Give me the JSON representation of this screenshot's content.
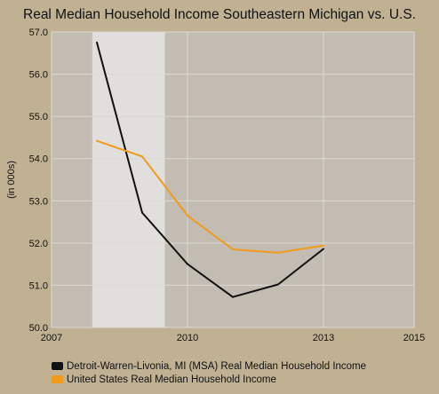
{
  "chart_data": {
    "type": "line",
    "title": "Real Median Household Income Southeastern Michigan vs. U.S.",
    "xlabel": "",
    "ylabel": "(in 000s)",
    "xlim": [
      2007,
      2015
    ],
    "ylim": [
      50.0,
      57.0
    ],
    "x_ticks": [
      "2007",
      "2010",
      "2013",
      "2015"
    ],
    "y_ticks": [
      "50.0",
      "51.0",
      "52.0",
      "53.0",
      "54.0",
      "55.0",
      "56.0",
      "57.0"
    ],
    "shaded_region": {
      "x_start": 2007.9,
      "x_end": 2009.5
    },
    "grid": true,
    "legend_position": "bottom",
    "x": [
      2008,
      2009,
      2010,
      2011,
      2012,
      2013
    ],
    "series": [
      {
        "name": "Detroit-Warren-Livonia, MI (MSA) Real Median Household Income",
        "color": "#111111",
        "values": [
          56.75,
          52.72,
          51.5,
          50.72,
          51.02,
          51.86
        ]
      },
      {
        "name": "United States Real Median Household Income",
        "color": "#f29a1a",
        "values": [
          54.42,
          54.05,
          52.65,
          51.85,
          51.77,
          51.94
        ]
      }
    ],
    "colors": {
      "plot_bg": "#c2bcb2",
      "shade": "#e0dfdd",
      "grid": "#dedad2",
      "outer_bg": "#c0b192"
    }
  }
}
